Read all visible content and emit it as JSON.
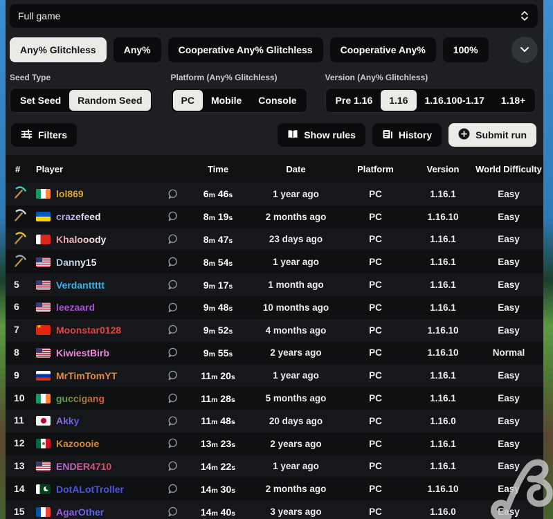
{
  "category_select": {
    "value": "Full game"
  },
  "tabs": [
    {
      "label": "Any% Glitchless",
      "active": true
    },
    {
      "label": "Any%",
      "active": false
    },
    {
      "label": "Cooperative Any% Glitchless",
      "active": false
    },
    {
      "label": "Cooperative Any%",
      "active": false
    },
    {
      "label": "100%",
      "active": false
    }
  ],
  "filter_groups": [
    {
      "label": "Seed Type",
      "options": [
        {
          "label": "Set Seed",
          "active": false
        },
        {
          "label": "Random Seed",
          "active": true
        }
      ]
    },
    {
      "label": "Platform (Any% Glitchless)",
      "options": [
        {
          "label": "PC",
          "active": true
        },
        {
          "label": "Mobile",
          "active": false
        },
        {
          "label": "Console",
          "active": false
        }
      ]
    },
    {
      "label": "Version (Any% Glitchless)",
      "options": [
        {
          "label": "Pre 1.16",
          "active": false
        },
        {
          "label": "1.16",
          "active": true
        },
        {
          "label": "1.16.100-1.17",
          "active": false
        },
        {
          "label": "1.18+",
          "active": false
        }
      ]
    }
  ],
  "actions": {
    "filters": "Filters",
    "show_rules": "Show rules",
    "history": "History",
    "submit_run": "Submit run"
  },
  "icons": {
    "select": "updown-chevron-icon",
    "expand": "chevron-down-icon",
    "filters": "sliders-icon",
    "show_rules": "book-icon",
    "history": "document-icon",
    "submit_run": "plus-circle-icon",
    "comment": "speech-bubble-icon",
    "trophies": "pickaxe-icon"
  },
  "colors": {
    "panel_controls_bg": "#1d1f22",
    "table_bg": "#0f1113",
    "button_dark": "#0a0b0c",
    "button_light": "#eceae7",
    "trophy": {
      "diamond": "#3ad2c4",
      "iron": "#ced2d7",
      "gold": "#e2c31f",
      "stone": "#9aa0a5",
      "handle": "#c8923f"
    }
  },
  "table": {
    "headers": [
      "#",
      "Player",
      "",
      "Time",
      "Date",
      "Platform",
      "Version",
      "World Difficulty"
    ],
    "time_units": {
      "m": "m",
      "s": "s"
    },
    "rows": [
      {
        "rank": "",
        "trophy": "diamond",
        "flag": "ireland",
        "player": "lol869",
        "name_color": "#d9a62e",
        "time_m": "6",
        "time_s": "46",
        "date": "1 year ago",
        "platform": "PC",
        "version": "1.16.1",
        "difficulty": "Easy"
      },
      {
        "rank": "",
        "trophy": "iron",
        "flag": "ukraine",
        "player": "crazefeed",
        "name_gradient": [
          "#a98fe0",
          "#ffffff"
        ],
        "time_m": "8",
        "time_s": "19",
        "date": "2 months ago",
        "platform": "PC",
        "version": "1.16.10",
        "difficulty": "Easy"
      },
      {
        "rank": "",
        "trophy": "gold",
        "flag": "bahrain",
        "player": "Khalooody",
        "name_gradient": [
          "#e8919c",
          "#ffffff"
        ],
        "time_m": "8",
        "time_s": "47",
        "date": "23 days ago",
        "platform": "PC",
        "version": "1.16.1",
        "difficulty": "Easy"
      },
      {
        "rank": "",
        "trophy": "stone",
        "flag": "usa",
        "player": "Danny15",
        "name_gradient": [
          "#aac3e4",
          "#ffffff"
        ],
        "time_m": "8",
        "time_s": "54",
        "date": "1 year ago",
        "platform": "PC",
        "version": "1.16.1",
        "difficulty": "Easy"
      },
      {
        "rank": "5",
        "trophy": null,
        "flag": "usa",
        "player": "Verdanttttt",
        "name_color": "#38b6e8",
        "time_m": "9",
        "time_s": "17",
        "date": "1 month ago",
        "platform": "PC",
        "version": "1.16.1",
        "difficulty": "Easy"
      },
      {
        "rank": "6",
        "trophy": null,
        "flag": "usa",
        "player": "leezaard",
        "name_color": "#a94fd1",
        "time_m": "9",
        "time_s": "48",
        "date": "10 months ago",
        "platform": "PC",
        "version": "1.16.1",
        "difficulty": "Easy"
      },
      {
        "rank": "7",
        "trophy": null,
        "flag": "china",
        "player": "Moonstar0128",
        "name_color": "#e8403a",
        "time_m": "9",
        "time_s": "52",
        "date": "4 months ago",
        "platform": "PC",
        "version": "1.16.10",
        "difficulty": "Easy"
      },
      {
        "rank": "8",
        "trophy": null,
        "flag": "usa",
        "player": "KiwiestBirb",
        "name_color": "#ef85d8",
        "time_m": "9",
        "time_s": "55",
        "date": "2 years ago",
        "platform": "PC",
        "version": "1.16.10",
        "difficulty": "Normal"
      },
      {
        "rank": "9",
        "trophy": null,
        "flag": "russia",
        "player": "MrTimTomYT",
        "name_color": "#e5893b",
        "time_m": "11",
        "time_s": "20",
        "date": "1 year ago",
        "platform": "PC",
        "version": "1.16.1",
        "difficulty": "Easy"
      },
      {
        "rank": "10",
        "trophy": null,
        "flag": "ireland",
        "player": "guccigang",
        "name_gradient": [
          "#53a94f",
          "#e05a3a"
        ],
        "time_m": "11",
        "time_s": "28",
        "date": "5 months ago",
        "platform": "PC",
        "version": "1.16.1",
        "difficulty": "Easy"
      },
      {
        "rank": "11",
        "trophy": null,
        "flag": "japan",
        "player": "Akky",
        "name_gradient": [
          "#9a6ae8",
          "#5b5be8"
        ],
        "time_m": "11",
        "time_s": "48",
        "date": "20 days ago",
        "platform": "PC",
        "version": "1.16.0",
        "difficulty": "Easy"
      },
      {
        "rank": "12",
        "trophy": null,
        "flag": "mexico",
        "player": "Kazoooie",
        "name_color": "#e0862e",
        "time_m": "13",
        "time_s": "23",
        "date": "2 years ago",
        "platform": "PC",
        "version": "1.16.1",
        "difficulty": "Easy"
      },
      {
        "rank": "13",
        "trophy": null,
        "flag": "usa",
        "player": "ENDER4710",
        "name_gradient": [
          "#b473dc",
          "#e04e57"
        ],
        "time_m": "14",
        "time_s": "22",
        "date": "1 year ago",
        "platform": "PC",
        "version": "1.16.1",
        "difficulty": "Easy"
      },
      {
        "rank": "14",
        "trophy": null,
        "flag": "pakistan",
        "player": "DotALotTroller",
        "name_color": "#4a55e8",
        "time_m": "14",
        "time_s": "30",
        "date": "2 months ago",
        "platform": "PC",
        "version": "1.16.10",
        "difficulty": "Easy"
      },
      {
        "rank": "15",
        "trophy": null,
        "flag": "france",
        "player": "AgarOther",
        "name_gradient": [
          "#a55ae8",
          "#4a6ae8"
        ],
        "time_m": "14",
        "time_s": "40",
        "date": "3 years ago",
        "platform": "PC",
        "version": "1.16.0",
        "difficulty": "Easy"
      }
    ]
  }
}
